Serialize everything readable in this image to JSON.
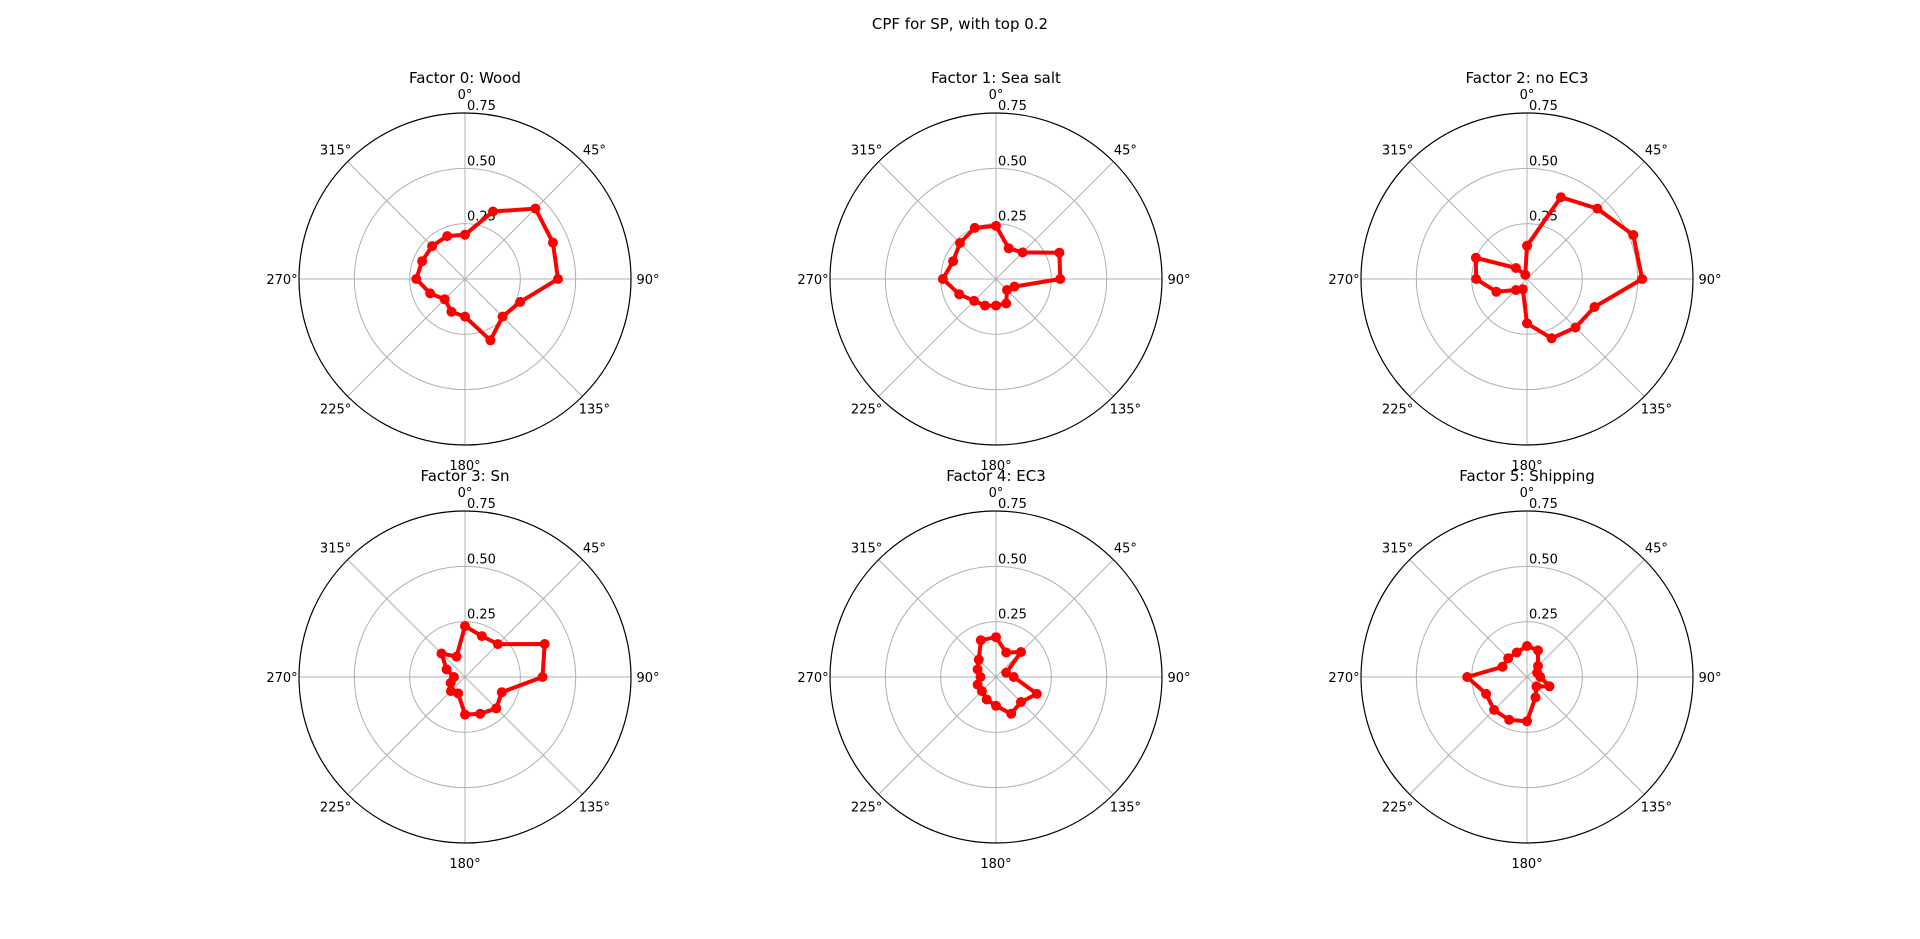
{
  "suptitle": "CPF for SP, with top 0.2",
  "colors": {
    "series": "#ff0000",
    "grid": "#b0b0b0",
    "spine": "#000000"
  },
  "chart_data": [
    {
      "type": "polar",
      "title": "Factor 0: Wood",
      "angle_ticks": [
        "0°",
        "45°",
        "90°",
        "135°",
        "180°",
        "225°",
        "270°",
        "315°"
      ],
      "radial_ticks": [
        "0.25",
        "0.50",
        "0.75"
      ],
      "rlim": [
        0,
        0.75
      ],
      "theta_zero": "N",
      "theta_direction": "clockwise",
      "theta_deg": [
        0,
        22.5,
        45,
        67.5,
        90,
        112.5,
        135,
        157.5,
        180,
        202.5,
        225,
        247.5,
        270,
        292.5,
        315,
        337.5
      ],
      "r": [
        0.2,
        0.33,
        0.45,
        0.43,
        0.42,
        0.27,
        0.24,
        0.3,
        0.17,
        0.16,
        0.13,
        0.17,
        0.22,
        0.21,
        0.21,
        0.21
      ]
    },
    {
      "type": "polar",
      "title": "Factor 1: Sea salt",
      "angle_ticks": [
        "0°",
        "45°",
        "90°",
        "135°",
        "180°",
        "225°",
        "270°",
        "315°"
      ],
      "radial_ticks": [
        "0.25",
        "0.50",
        "0.75"
      ],
      "rlim": [
        0,
        0.75
      ],
      "theta_zero": "N",
      "theta_direction": "clockwise",
      "theta_deg": [
        0,
        22.5,
        45,
        67.5,
        90,
        112.5,
        135,
        157.5,
        180,
        202.5,
        225,
        247.5,
        270,
        292.5,
        315,
        337.5
      ],
      "r": [
        0.24,
        0.15,
        0.17,
        0.31,
        0.29,
        0.09,
        0.07,
        0.12,
        0.12,
        0.13,
        0.14,
        0.18,
        0.24,
        0.21,
        0.23,
        0.25
      ]
    },
    {
      "type": "polar",
      "title": "Factor 2: no EC3",
      "angle_ticks": [
        "0°",
        "45°",
        "90°",
        "135°",
        "180°",
        "225°",
        "270°",
        "315°"
      ],
      "radial_ticks": [
        "0.25",
        "0.50",
        "0.75"
      ],
      "rlim": [
        0,
        0.75
      ],
      "theta_zero": "N",
      "theta_direction": "clockwise",
      "theta_deg": [
        0,
        22.5,
        45,
        67.5,
        90,
        112.5,
        135,
        157.5,
        180,
        202.5,
        225,
        247.5,
        270,
        292.5,
        315,
        337.5
      ],
      "r": [
        0.15,
        0.4,
        0.45,
        0.52,
        0.52,
        0.33,
        0.31,
        0.29,
        0.2,
        0.05,
        0.07,
        0.15,
        0.23,
        0.25,
        0.07,
        0.02
      ]
    },
    {
      "type": "polar",
      "title": "Factor 3: Sn",
      "angle_ticks": [
        "0°",
        "45°",
        "90°",
        "135°",
        "180°",
        "225°",
        "270°",
        "315°"
      ],
      "radial_ticks": [
        "0.25",
        "0.50",
        "0.75"
      ],
      "rlim": [
        0,
        0.75
      ],
      "theta_zero": "N",
      "theta_direction": "clockwise",
      "theta_deg": [
        0,
        22.5,
        45,
        67.5,
        90,
        112.5,
        135,
        157.5,
        180,
        202.5,
        225,
        247.5,
        270,
        292.5,
        315,
        337.5
      ],
      "r": [
        0.23,
        0.2,
        0.21,
        0.39,
        0.35,
        0.18,
        0.2,
        0.18,
        0.17,
        0.08,
        0.09,
        0.07,
        0.05,
        0.09,
        0.15,
        0.1
      ]
    },
    {
      "type": "polar",
      "title": "Factor 4: EC3",
      "angle_ticks": [
        "0°",
        "45°",
        "90°",
        "135°",
        "180°",
        "225°",
        "270°",
        "315°"
      ],
      "radial_ticks": [
        "0.25",
        "0.50",
        "0.75"
      ],
      "rlim": [
        0,
        0.75
      ],
      "theta_zero": "N",
      "theta_direction": "clockwise",
      "theta_deg": [
        0,
        22.5,
        45,
        67.5,
        90,
        112.5,
        135,
        157.5,
        180,
        202.5,
        225,
        247.5,
        270,
        292.5,
        315,
        337.5
      ],
      "r": [
        0.18,
        0.12,
        0.16,
        0.05,
        0.08,
        0.2,
        0.16,
        0.18,
        0.13,
        0.11,
        0.09,
        0.09,
        0.07,
        0.09,
        0.11,
        0.18
      ]
    },
    {
      "type": "polar",
      "title": "Factor 5: Shipping",
      "angle_ticks": [
        "0°",
        "45°",
        "90°",
        "135°",
        "180°",
        "225°",
        "270°",
        "315°"
      ],
      "radial_ticks": [
        "0.25",
        "0.50",
        "0.75"
      ],
      "rlim": [
        0,
        0.75
      ],
      "theta_zero": "N",
      "theta_direction": "clockwise",
      "theta_deg": [
        0,
        22.5,
        45,
        67.5,
        90,
        112.5,
        135,
        157.5,
        180,
        202.5,
        225,
        247.5,
        270,
        292.5,
        315,
        337.5
      ],
      "r": [
        0.14,
        0.13,
        0.07,
        0.05,
        0.06,
        0.11,
        0.06,
        0.1,
        0.2,
        0.21,
        0.21,
        0.2,
        0.27,
        0.12,
        0.12,
        0.12
      ]
    }
  ]
}
